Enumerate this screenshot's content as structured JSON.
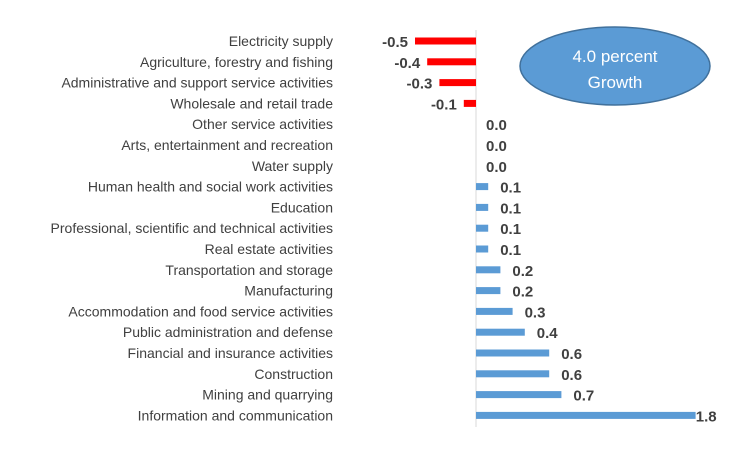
{
  "chart_data": {
    "type": "bar",
    "orientation": "horizontal",
    "categories": [
      "Electricity supply",
      "Agriculture, forestry and fishing",
      "Administrative and support service activities",
      "Wholesale and retail trade",
      "Other service activities",
      "Arts, entertainment and recreation",
      "Water supply",
      "Human health and social work activities",
      "Education",
      "Professional, scientific and technical activities",
      "Real estate activities",
      "Transportation and storage",
      "Manufacturing",
      "Accommodation and food service activities",
      "Public administration and defense",
      "Financial and insurance activities",
      "Construction",
      "Mining and quarrying",
      "Information and communication"
    ],
    "values": [
      -0.5,
      -0.4,
      -0.3,
      -0.1,
      0.0,
      0.0,
      0.0,
      0.1,
      0.1,
      0.1,
      0.1,
      0.2,
      0.2,
      0.3,
      0.4,
      0.6,
      0.6,
      0.7,
      1.8
    ],
    "value_labels": [
      "-0.5",
      "-0.4",
      "-0.3",
      "-0.1",
      "0.0",
      "0.0",
      "0.0",
      "0.1",
      "0.1",
      "0.1",
      "0.1",
      "0.2",
      "0.2",
      "0.3",
      "0.4",
      "0.6",
      "0.6",
      "0.7",
      "1.8"
    ],
    "xlim": [
      -0.5,
      1.8
    ],
    "grid": false,
    "legend": "none",
    "annotation": {
      "line1": "4.0 percent",
      "line2": "Growth",
      "placement": "top-right"
    },
    "colors": {
      "negative": "#ff0000",
      "positive": "#5b9bd5",
      "annotation_fill": "#5b9bd5",
      "annotation_stroke": "#41719c",
      "axis": "#d9d9d9",
      "text": "#404040"
    }
  }
}
